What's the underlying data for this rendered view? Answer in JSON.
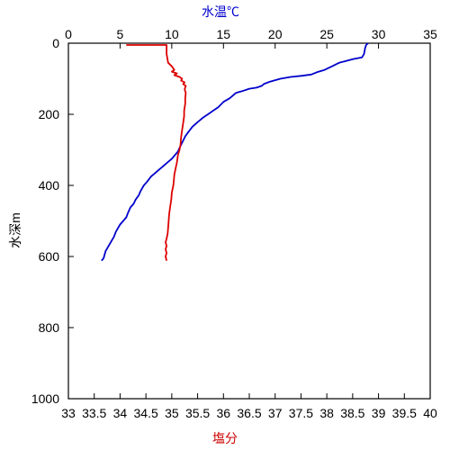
{
  "chart_data": {
    "type": "line",
    "top_axis_label": "水温℃",
    "bottom_axis_label": "塩分",
    "left_axis_label": "水深m",
    "top_axis": {
      "min": 0,
      "max": 35,
      "ticks": [
        0,
        5,
        10,
        15,
        20,
        25,
        30,
        35
      ],
      "tick_labels": [
        "0",
        "5",
        "10",
        "15",
        "20",
        "25",
        "30",
        "35"
      ]
    },
    "bottom_axis": {
      "min": 33,
      "max": 40,
      "ticks": [
        33,
        33.5,
        34,
        34.5,
        35,
        35.5,
        36,
        36.5,
        37,
        37.5,
        38,
        38.5,
        39,
        39.5,
        40
      ],
      "tick_labels": [
        "33",
        "33.5",
        "34",
        "34.5",
        "35",
        "35.5",
        "36",
        "36.5",
        "37",
        "37.5",
        "38",
        "38.5",
        "39",
        "39.5",
        "40"
      ]
    },
    "left_axis": {
      "min": 0,
      "max": 1000,
      "inverted": true,
      "ticks": [
        0,
        200,
        400,
        600,
        800,
        1000
      ],
      "tick_labels": [
        "0",
        "200",
        "400",
        "600",
        "800",
        "1000"
      ]
    },
    "colors": {
      "temperature": "#0000cc",
      "salinity": "#dd0000",
      "top_label": "#0000cc",
      "bottom_label": "#cc0000"
    },
    "series": [
      {
        "axis": "top",
        "color_key": "temperature",
        "points": [
          [
            29.0,
            0
          ],
          [
            28.8,
            5
          ],
          [
            28.7,
            15
          ],
          [
            28.6,
            30
          ],
          [
            28.4,
            40
          ],
          [
            27.5,
            45
          ],
          [
            26.2,
            55
          ],
          [
            25.5,
            65
          ],
          [
            24.8,
            75
          ],
          [
            24.0,
            82
          ],
          [
            23.5,
            88
          ],
          [
            22.5,
            92
          ],
          [
            21.5,
            95
          ],
          [
            20.5,
            100
          ],
          [
            19.5,
            108
          ],
          [
            18.9,
            115
          ],
          [
            18.7,
            120
          ],
          [
            18.2,
            125
          ],
          [
            17.5,
            128
          ],
          [
            16.8,
            135
          ],
          [
            16.2,
            140
          ],
          [
            15.6,
            155
          ],
          [
            15.0,
            165
          ],
          [
            14.5,
            180
          ],
          [
            14.0,
            190
          ],
          [
            13.5,
            200
          ],
          [
            13.0,
            210
          ],
          [
            12.5,
            222
          ],
          [
            12.0,
            235
          ],
          [
            11.6,
            250
          ],
          [
            11.3,
            262
          ],
          [
            11.0,
            280
          ],
          [
            10.8,
            292
          ],
          [
            10.6,
            305
          ],
          [
            10.3,
            315
          ],
          [
            10.0,
            325
          ],
          [
            9.6,
            335
          ],
          [
            9.2,
            345
          ],
          [
            8.8,
            355
          ],
          [
            8.4,
            365
          ],
          [
            8.0,
            375
          ],
          [
            7.6,
            390
          ],
          [
            7.3,
            400
          ],
          [
            7.0,
            415
          ],
          [
            6.8,
            428
          ],
          [
            6.5,
            440
          ],
          [
            6.3,
            452
          ],
          [
            6.0,
            462
          ],
          [
            5.8,
            475
          ],
          [
            5.6,
            490
          ],
          [
            5.3,
            500
          ],
          [
            5.0,
            510
          ],
          [
            4.8,
            520
          ],
          [
            4.6,
            530
          ],
          [
            4.4,
            545
          ],
          [
            4.2,
            555
          ],
          [
            4.0,
            565
          ],
          [
            3.8,
            575
          ],
          [
            3.6,
            585
          ],
          [
            3.5,
            595
          ],
          [
            3.4,
            605
          ],
          [
            3.2,
            612
          ]
        ]
      },
      {
        "axis": "bottom",
        "color_key": "salinity",
        "points": [
          [
            34.12,
            5
          ],
          [
            34.6,
            5
          ],
          [
            34.9,
            5
          ],
          [
            34.9,
            30
          ],
          [
            34.93,
            55
          ],
          [
            35.0,
            65
          ],
          [
            35.05,
            75
          ],
          [
            35.0,
            80
          ],
          [
            35.1,
            85
          ],
          [
            35.05,
            90
          ],
          [
            35.15,
            95
          ],
          [
            35.2,
            100
          ],
          [
            35.18,
            105
          ],
          [
            35.25,
            110
          ],
          [
            35.22,
            115
          ],
          [
            35.27,
            120
          ],
          [
            35.25,
            130
          ],
          [
            35.27,
            140
          ],
          [
            35.26,
            155
          ],
          [
            35.26,
            170
          ],
          [
            35.24,
            190
          ],
          [
            35.24,
            205
          ],
          [
            35.22,
            225
          ],
          [
            35.2,
            245
          ],
          [
            35.18,
            265
          ],
          [
            35.17,
            285
          ],
          [
            35.15,
            300
          ],
          [
            35.12,
            315
          ],
          [
            35.1,
            335
          ],
          [
            35.07,
            355
          ],
          [
            35.05,
            370
          ],
          [
            35.04,
            385
          ],
          [
            35.03,
            400
          ],
          [
            35.0,
            420
          ],
          [
            34.99,
            440
          ],
          [
            34.97,
            460
          ],
          [
            34.95,
            480
          ],
          [
            34.94,
            500
          ],
          [
            34.93,
            520
          ],
          [
            34.92,
            535
          ],
          [
            34.9,
            550
          ],
          [
            34.88,
            560
          ],
          [
            34.9,
            570
          ],
          [
            34.88,
            580
          ],
          [
            34.9,
            590
          ],
          [
            34.88,
            600
          ],
          [
            34.9,
            612
          ]
        ]
      }
    ]
  }
}
